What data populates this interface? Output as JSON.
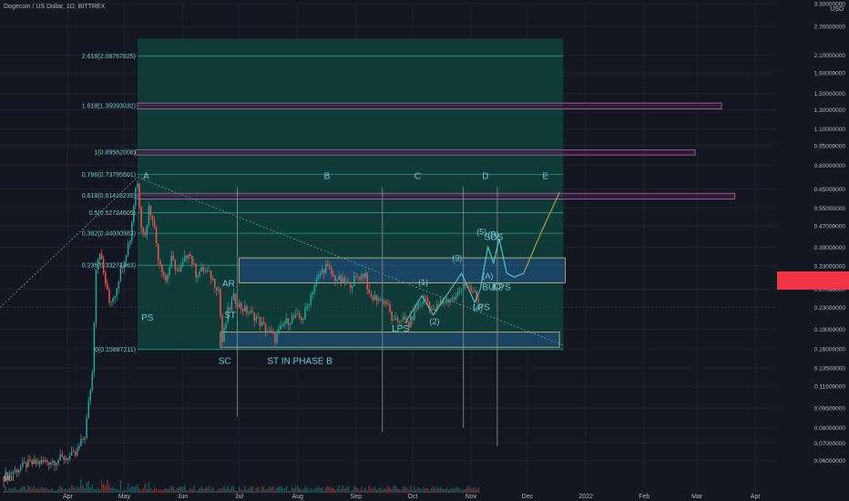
{
  "symbol_title": "Dogecoin / US Dollar, 1D, BITTREX",
  "currency": "USD",
  "volume_label": "Vol",
  "colors": {
    "background": "#131722",
    "grid": "#1c2030",
    "up": "#26a69a",
    "down": "#ef5350",
    "fib_band": "#0f3a38",
    "fib_line": "#3fb3aa",
    "box_fill": "#1d4870",
    "box_stroke": "#d4c27a",
    "magenta_stroke": "#b16aa3",
    "magenta_fill": "#3a1e3f",
    "wave": "#4fd0d0",
    "forecast": "#b9a543",
    "annotation": "#73c6d6",
    "last_price": "#f23645"
  },
  "chart_data": {
    "type": "candlestick",
    "title": "Dogecoin / US Dollar, 1D, BITTREX",
    "y_scale": "log",
    "ylim": [
      0.057,
      3.3
    ],
    "xlim": [
      "2021-02-24",
      "2022-04-12"
    ],
    "y_ticks": [
      "3.30000000",
      "2.70000000",
      "2.10000000",
      "1.80000000",
      "1.50000000",
      "1.30000000",
      "1.10000000",
      "0.95000000",
      "0.80000000",
      "0.65000000",
      "0.55000000",
      "0.47000000",
      "0.39000000",
      "0.33000000",
      "0.27000000",
      "0.23000000",
      "0.19000000",
      "0.16000000",
      "0.13500000",
      "0.11500000",
      "0.09500000",
      "0.08000000",
      "0.07000000",
      "0.06000000"
    ],
    "x_ticks": [
      {
        "label": "Apr",
        "date": "2021-04-01"
      },
      {
        "label": "May",
        "date": "2021-05-01"
      },
      {
        "label": "Jun",
        "date": "2021-06-01"
      },
      {
        "label": "Jul",
        "date": "2021-07-01"
      },
      {
        "label": "Aug",
        "date": "2021-08-01"
      },
      {
        "label": "Sep",
        "date": "2021-09-01"
      },
      {
        "label": "Oct",
        "date": "2021-10-01"
      },
      {
        "label": "Nov",
        "date": "2021-11-01"
      },
      {
        "label": "Dec",
        "date": "2021-12-01"
      },
      {
        "label": "2022",
        "date": "2022-01-01"
      },
      {
        "label": "Feb",
        "date": "2022-02-01"
      },
      {
        "label": "Mar",
        "date": "2022-03-01"
      },
      {
        "label": "Apr",
        "date": "2022-04-01"
      }
    ],
    "price_path": [
      [
        "2021-02-26",
        0.052
      ],
      [
        "2021-03-10",
        0.058
      ],
      [
        "2021-03-25",
        0.06
      ],
      [
        "2021-04-05",
        0.063
      ],
      [
        "2021-04-10",
        0.075
      ],
      [
        "2021-04-14",
        0.13
      ],
      [
        "2021-04-16",
        0.33
      ],
      [
        "2021-04-18",
        0.38
      ],
      [
        "2021-04-20",
        0.31
      ],
      [
        "2021-04-23",
        0.24
      ],
      [
        "2021-04-26",
        0.26
      ],
      [
        "2021-04-29",
        0.32
      ],
      [
        "2021-05-04",
        0.42
      ],
      [
        "2021-05-07",
        0.66
      ],
      [
        "2021-05-08",
        0.68
      ],
      [
        "2021-05-10",
        0.48
      ],
      [
        "2021-05-12",
        0.43
      ],
      [
        "2021-05-14",
        0.55
      ],
      [
        "2021-05-16",
        0.51
      ],
      [
        "2021-05-19",
        0.36
      ],
      [
        "2021-05-23",
        0.29
      ],
      [
        "2021-05-26",
        0.35
      ],
      [
        "2021-05-30",
        0.31
      ],
      [
        "2021-06-04",
        0.38
      ],
      [
        "2021-06-08",
        0.31
      ],
      [
        "2021-06-12",
        0.32
      ],
      [
        "2021-06-16",
        0.3
      ],
      [
        "2021-06-20",
        0.27
      ],
      [
        "2021-06-22",
        0.17
      ],
      [
        "2021-06-25",
        0.22
      ],
      [
        "2021-06-28",
        0.25
      ],
      [
        "2021-07-02",
        0.23
      ],
      [
        "2021-07-06",
        0.22
      ],
      [
        "2021-07-10",
        0.21
      ],
      [
        "2021-07-15",
        0.19
      ],
      [
        "2021-07-20",
        0.175
      ],
      [
        "2021-07-25",
        0.2
      ],
      [
        "2021-07-29",
        0.21
      ],
      [
        "2021-08-04",
        0.21
      ],
      [
        "2021-08-09",
        0.27
      ],
      [
        "2021-08-13",
        0.31
      ],
      [
        "2021-08-16",
        0.33
      ],
      [
        "2021-08-20",
        0.3
      ],
      [
        "2021-08-24",
        0.29
      ],
      [
        "2021-08-28",
        0.28
      ],
      [
        "2021-09-02",
        0.3
      ],
      [
        "2021-09-06",
        0.31
      ],
      [
        "2021-09-08",
        0.25
      ],
      [
        "2021-09-12",
        0.25
      ],
      [
        "2021-09-17",
        0.24
      ],
      [
        "2021-09-21",
        0.2
      ],
      [
        "2021-09-25",
        0.21
      ],
      [
        "2021-09-29",
        0.197
      ],
      [
        "2021-10-03",
        0.23
      ],
      [
        "2021-10-08",
        0.25
      ],
      [
        "2021-10-12",
        0.22
      ],
      [
        "2021-10-16",
        0.24
      ],
      [
        "2021-10-20",
        0.245
      ],
      [
        "2021-10-24",
        0.25
      ],
      [
        "2021-10-28",
        0.29
      ],
      [
        "2021-10-30",
        0.27
      ],
      [
        "2021-11-03",
        0.26
      ],
      [
        "2021-11-05",
        0.24
      ]
    ],
    "projection": [
      [
        "2021-11-06",
        0.27
      ],
      [
        "2021-11-10",
        0.39
      ],
      [
        "2021-11-13",
        0.34
      ],
      [
        "2021-11-16",
        0.42
      ],
      [
        "2021-11-20",
        0.31
      ],
      [
        "2021-11-24",
        0.3
      ],
      [
        "2021-11-29",
        0.31
      ],
      [
        "2021-12-08",
        0.44
      ],
      [
        "2021-12-18",
        0.63
      ]
    ],
    "fibonacci": {
      "start": "2021-05-08",
      "end": "2021-12-20",
      "levels": [
        {
          "label": "2.618(2.08767825)",
          "price": 2.08767825
        },
        {
          "label": "1.618(1.35093032)",
          "price": 1.35093032
        },
        {
          "label": "1(0.89562008)",
          "price": 0.89562008
        },
        {
          "label": "0.786(0.73795601)",
          "price": 0.73795601
        },
        {
          "label": "0.618(0.61418235)",
          "price": 0.61418235
        },
        {
          "label": "0.5(0.52724605)",
          "price": 0.52724605
        },
        {
          "label": "0.382(0.44030983)",
          "price": 0.44030983
        },
        {
          "label": "0.236(0.33274463)",
          "price": 0.33274463
        },
        {
          "label": "0(0.15887211)",
          "price": 0.15887211
        }
      ]
    },
    "zones": [
      {
        "kind": "magenta",
        "from": "2021-05-08",
        "to": "2022-03-14",
        "top": 1.38,
        "bottom": 1.31
      },
      {
        "kind": "magenta",
        "from": "2021-05-07",
        "to": "2022-02-28",
        "top": 0.915,
        "bottom": 0.875
      },
      {
        "kind": "magenta",
        "from": "2021-05-08",
        "to": "2022-03-21",
        "top": 0.625,
        "bottom": 0.595
      },
      {
        "kind": "blue",
        "from": "2021-07-01",
        "to": "2021-12-21",
        "top": 0.355,
        "bottom": 0.285
      },
      {
        "kind": "blue",
        "from": "2021-06-21",
        "to": "2021-12-18",
        "top": 0.185,
        "bottom": 0.162
      }
    ],
    "vertical_lines": [
      {
        "date": "2021-06-30",
        "from": 0.66,
        "to": 0.088
      },
      {
        "date": "2021-09-15",
        "from": 0.66,
        "to": 0.077
      },
      {
        "date": "2021-10-28",
        "from": 0.66,
        "to": 0.08
      },
      {
        "date": "2021-11-15",
        "from": 0.66,
        "to": 0.068
      }
    ],
    "phase_labels": [
      "A",
      "B",
      "C",
      "D",
      "E"
    ],
    "wyckoff_labels": [
      "PS",
      "SC",
      "AR",
      "ST",
      "ST IN PHASE B",
      "LPS",
      "LPS",
      "BU",
      "LPS",
      "SOS"
    ],
    "wave_labels": [
      "(1)",
      "(2)",
      "(3)",
      "(4)",
      "(5)",
      "(A)",
      "(B)",
      "(C)"
    ],
    "last_price_level": 0.23
  }
}
